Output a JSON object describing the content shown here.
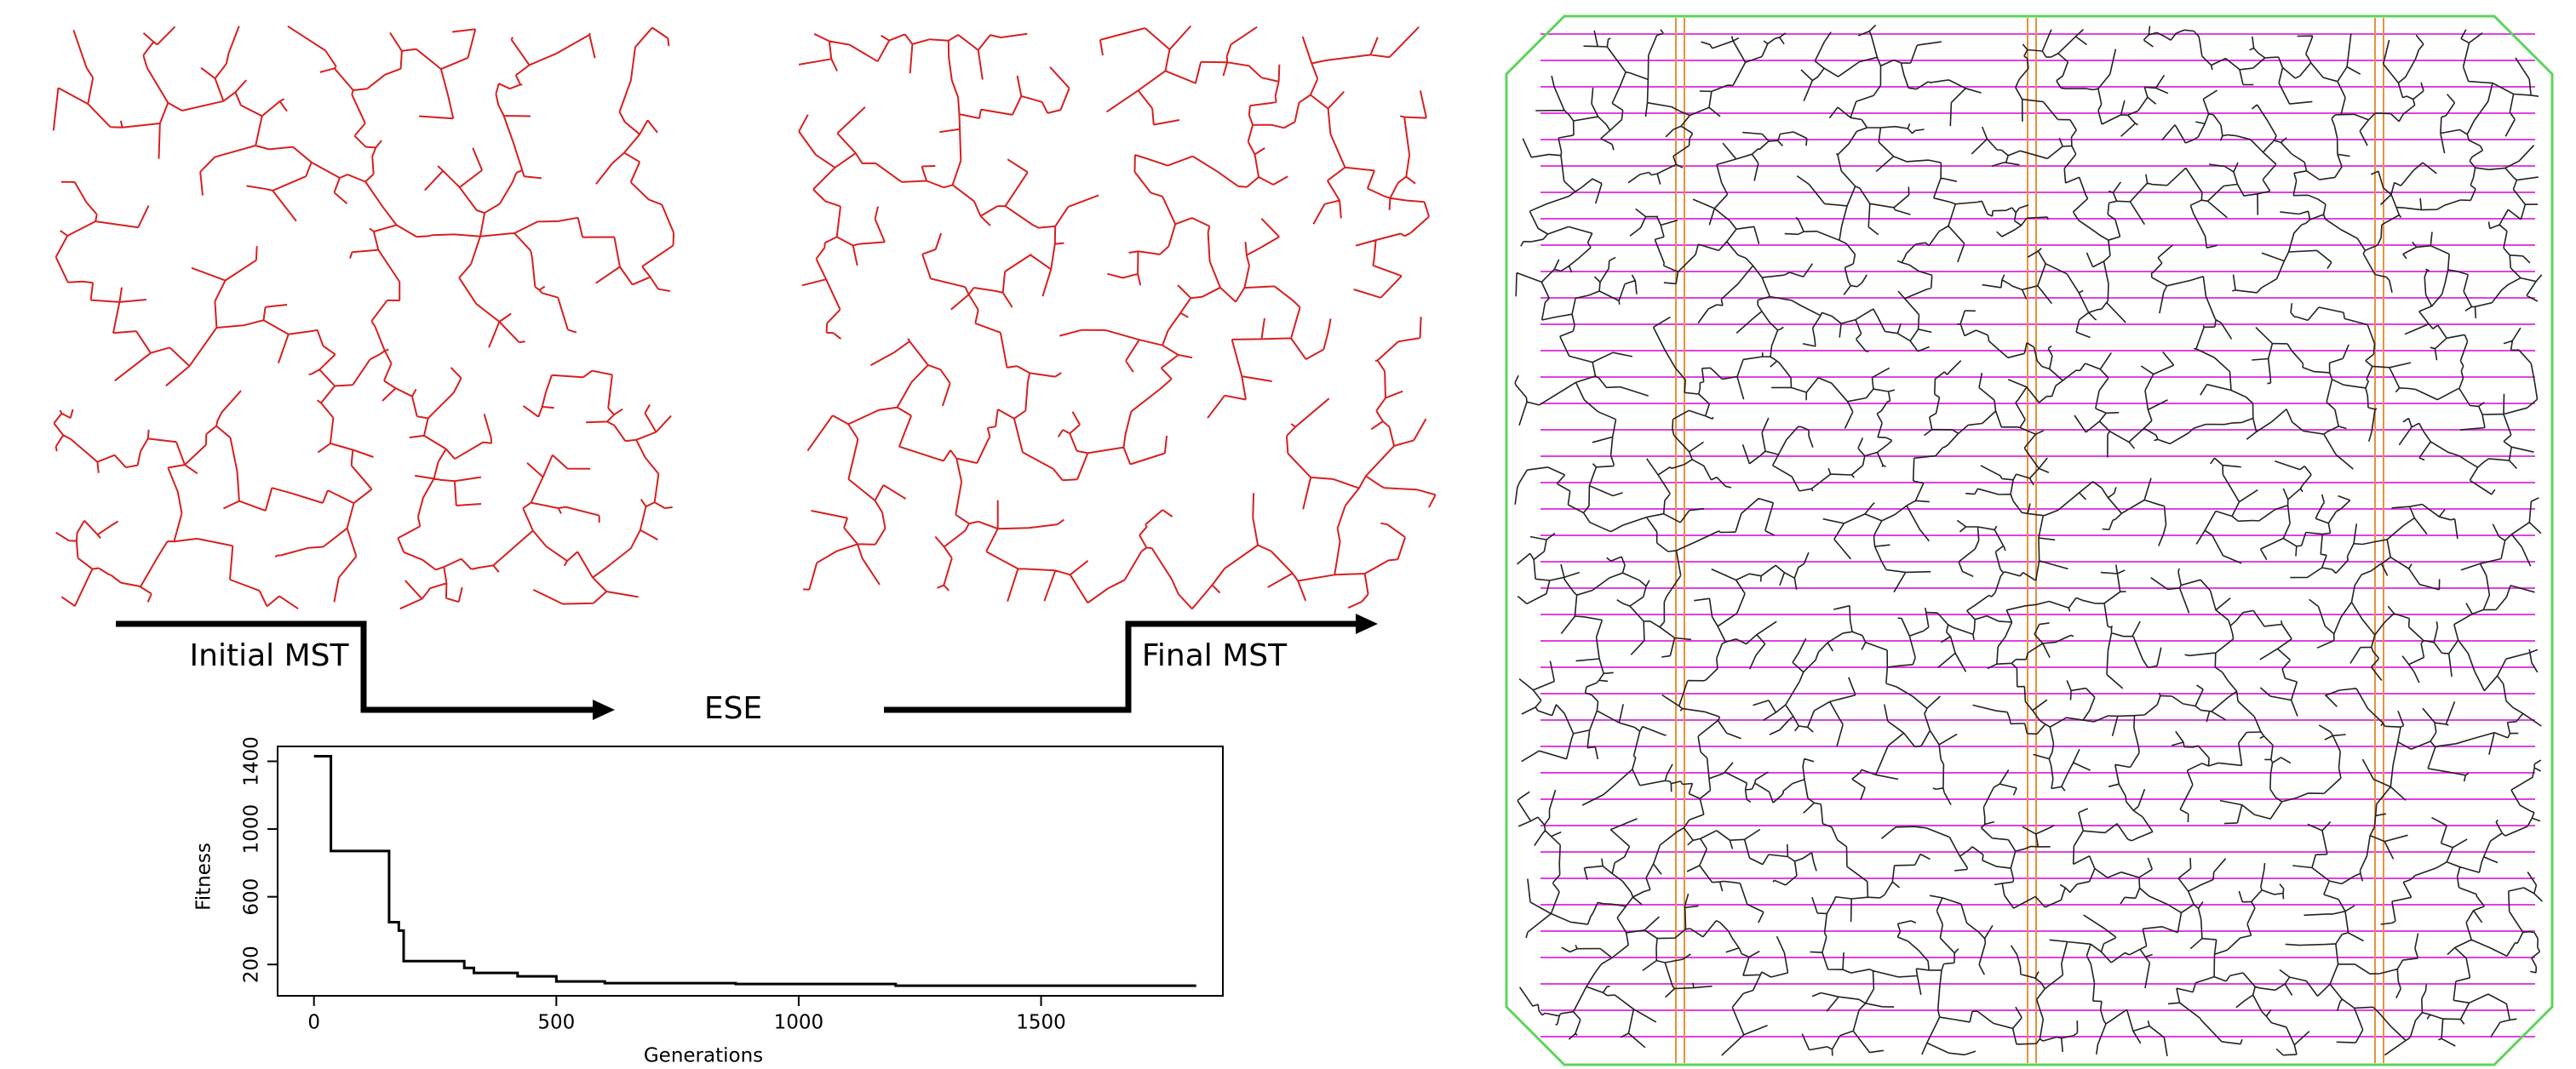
{
  "labels": {
    "initial": "Initial MST",
    "ese": "ESE",
    "final": "Final MST"
  },
  "chart_data": {
    "type": "line",
    "color": "#000000",
    "xlabel": "Generations",
    "ylabel": "Fitness",
    "x": [
      0,
      35,
      35,
      155,
      155,
      175,
      175,
      185,
      185,
      310,
      310,
      330,
      330,
      420,
      420,
      500,
      500,
      600,
      600,
      870,
      870,
      1200,
      1200,
      1820
    ],
    "values": [
      1430,
      1430,
      870,
      870,
      450,
      450,
      400,
      400,
      220,
      220,
      180,
      180,
      150,
      150,
      130,
      130,
      100,
      100,
      90,
      90,
      85,
      85,
      75,
      75
    ],
    "xlim": [
      -75,
      1875
    ],
    "ylim": [
      15,
      1488
    ],
    "xticks": [
      0,
      500,
      1000,
      1500
    ],
    "yticks": [
      200,
      600,
      1000,
      1400
    ]
  }
}
